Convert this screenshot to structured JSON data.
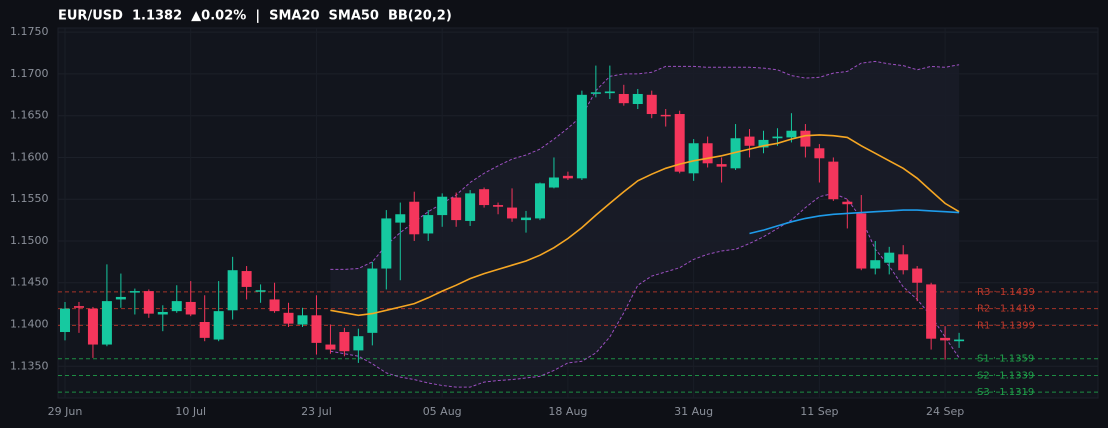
{
  "chart_data": {
    "type": "candlestick",
    "title": "EUR/USD  1.1382  ▲0.02%  |",
    "categories": [
      "29 Jun",
      null,
      null,
      null,
      null,
      null,
      null,
      null,
      null,
      "10 Jul",
      null,
      null,
      null,
      null,
      null,
      null,
      null,
      null,
      "23 Jul",
      null,
      null,
      null,
      null,
      null,
      null,
      null,
      null,
      "05 Aug",
      null,
      null,
      null,
      null,
      null,
      null,
      null,
      null,
      "18 Aug",
      null,
      null,
      null,
      null,
      null,
      null,
      null,
      null,
      "31 Aug",
      null,
      null,
      null,
      null,
      null,
      null,
      null,
      null,
      "11 Sep",
      null,
      null,
      null,
      null,
      null,
      null,
      null,
      null,
      "24 Sep",
      null
    ],
    "open": [
      1.1391,
      1.1422,
      1.1419,
      1.1376,
      1.143,
      1.1439,
      1.144,
      1.1412,
      1.1416,
      1.1427,
      1.1403,
      1.1382,
      1.1417,
      1.1464,
      1.144,
      1.143,
      1.1414,
      1.14,
      1.1411,
      1.1376,
      1.1391,
      1.1369,
      1.139,
      1.1467,
      1.1522,
      1.1547,
      1.1509,
      1.1531,
      1.1552,
      1.1524,
      1.1562,
      1.1543,
      1.154,
      1.1525,
      1.1527,
      1.1564,
      1.1578,
      1.1575,
      1.1677,
      1.1677,
      1.1676,
      1.1664,
      1.1675,
      1.1651,
      1.1652,
      1.1581,
      1.1617,
      1.1592,
      1.1587,
      1.1625,
      1.1612,
      1.1623,
      1.1624,
      1.1632,
      1.1611,
      1.1595,
      1.1547,
      1.1533,
      1.1467,
      1.1474,
      1.1484,
      1.1467,
      1.1448,
      1.1384,
      1.138
    ],
    "high": [
      1.1427,
      1.1427,
      1.1421,
      1.1472,
      1.1461,
      1.1443,
      1.1442,
      1.1423,
      1.1447,
      1.1452,
      1.1435,
      1.1452,
      1.1481,
      1.147,
      1.1448,
      1.145,
      1.1426,
      1.142,
      1.1435,
      1.14,
      1.1396,
      1.1395,
      1.1475,
      1.1537,
      1.1546,
      1.1559,
      1.1537,
      1.1557,
      1.1558,
      1.1561,
      1.1564,
      1.1546,
      1.1563,
      1.1536,
      1.157,
      1.16,
      1.1583,
      1.168,
      1.171,
      1.171,
      1.1687,
      1.1682,
      1.168,
      1.1658,
      1.1656,
      1.1622,
      1.1625,
      1.16,
      1.164,
      1.1634,
      1.1632,
      1.1635,
      1.1653,
      1.164,
      1.1616,
      1.16,
      1.155,
      1.1555,
      1.15,
      1.1493,
      1.1495,
      1.147,
      1.145,
      1.1398,
      1.139
    ],
    "low": [
      1.1381,
      1.139,
      1.136,
      1.1374,
      1.142,
      1.1412,
      1.1408,
      1.1392,
      1.1414,
      1.141,
      1.138,
      1.138,
      1.1406,
      1.143,
      1.1426,
      1.1414,
      1.1397,
      1.1397,
      1.1364,
      1.1365,
      1.1362,
      1.1354,
      1.1375,
      1.1442,
      1.1453,
      1.15,
      1.15,
      1.1517,
      1.1517,
      1.1518,
      1.154,
      1.1532,
      1.1523,
      1.151,
      1.1525,
      1.1563,
      1.1573,
      1.1573,
      1.1672,
      1.167,
      1.1662,
      1.1658,
      1.1647,
      1.1637,
      1.1581,
      1.1572,
      1.1588,
      1.157,
      1.1585,
      1.16,
      1.1605,
      1.1614,
      1.1618,
      1.16,
      1.157,
      1.1548,
      1.1515,
      1.1465,
      1.146,
      1.146,
      1.146,
      1.1428,
      1.137,
      1.1358,
      1.1372
    ],
    "close": [
      1.1419,
      1.142,
      1.1376,
      1.1428,
      1.1433,
      1.144,
      1.1413,
      1.1415,
      1.1428,
      1.1412,
      1.1384,
      1.1416,
      1.1465,
      1.1445,
      1.1441,
      1.1416,
      1.1401,
      1.1411,
      1.1378,
      1.137,
      1.1368,
      1.1386,
      1.1467,
      1.1527,
      1.1532,
      1.1508,
      1.1531,
      1.1553,
      1.1525,
      1.1557,
      1.1543,
      1.1541,
      1.1527,
      1.1528,
      1.1569,
      1.1576,
      1.1575,
      1.1675,
      1.1678,
      1.1679,
      1.1665,
      1.1676,
      1.1652,
      1.165,
      1.1583,
      1.1617,
      1.1593,
      1.1589,
      1.1623,
      1.1614,
      1.1621,
      1.1625,
      1.1632,
      1.1613,
      1.1599,
      1.155,
      1.1544,
      1.1467,
      1.1477,
      1.1486,
      1.1465,
      1.145,
      1.1383,
      1.1381,
      1.1382
    ],
    "up_color": "#16c9a0",
    "down_color": "#f5365c",
    "series": [
      {
        "name": "SMA20",
        "color": "#f5a623",
        "values": [
          null,
          null,
          null,
          null,
          null,
          null,
          null,
          null,
          null,
          null,
          null,
          null,
          null,
          null,
          null,
          null,
          null,
          null,
          null,
          1.1417,
          1.1414,
          1.1411,
          1.1413,
          1.1417,
          1.1421,
          1.1425,
          1.1432,
          1.144,
          1.1447,
          1.1455,
          1.1461,
          1.1466,
          1.1471,
          1.1476,
          1.1483,
          1.1492,
          1.1503,
          1.1516,
          1.1531,
          1.1545,
          1.1559,
          1.1572,
          1.158,
          1.1587,
          1.1592,
          1.1596,
          1.1599,
          1.1602,
          1.1606,
          1.161,
          1.1614,
          1.1617,
          1.1622,
          1.1626,
          1.1627,
          1.1626,
          1.1624,
          1.1614,
          1.1605,
          1.1596,
          1.1587,
          1.1575,
          1.156,
          1.1545,
          1.1535
        ]
      },
      {
        "name": "SMA50",
        "color": "#1e9be9",
        "values": [
          null,
          null,
          null,
          null,
          null,
          null,
          null,
          null,
          null,
          null,
          null,
          null,
          null,
          null,
          null,
          null,
          null,
          null,
          null,
          null,
          null,
          null,
          null,
          null,
          null,
          null,
          null,
          null,
          null,
          null,
          null,
          null,
          null,
          null,
          null,
          null,
          null,
          null,
          null,
          null,
          null,
          null,
          null,
          null,
          null,
          null,
          null,
          null,
          null,
          1.1509,
          1.1513,
          1.1518,
          1.1523,
          1.1527,
          1.153,
          1.1532,
          1.1533,
          1.1534,
          1.1535,
          1.1536,
          1.1537,
          1.1537,
          1.1536,
          1.1535,
          1.1534
        ]
      },
      {
        "name": "BB(20,2)",
        "color": "#9b4fc0",
        "upper": [
          null,
          null,
          null,
          null,
          null,
          null,
          null,
          null,
          null,
          null,
          null,
          null,
          null,
          null,
          null,
          null,
          null,
          null,
          null,
          1.1466,
          1.1466,
          1.1467,
          1.1475,
          1.1495,
          1.151,
          1.1523,
          1.1535,
          1.1545,
          1.1555,
          1.157,
          1.1581,
          1.159,
          1.1598,
          1.1603,
          1.161,
          1.1622,
          1.1635,
          1.165,
          1.168,
          1.1697,
          1.17,
          1.17,
          1.1702,
          1.1709,
          1.1709,
          1.1709,
          1.1708,
          1.1708,
          1.1708,
          1.1708,
          1.1707,
          1.1705,
          1.1698,
          1.1695,
          1.1696,
          1.1701,
          1.1703,
          1.1713,
          1.1715,
          1.1712,
          1.171,
          1.1705,
          1.1709,
          1.1708,
          1.1711
        ],
        "lower": [
          null,
          null,
          null,
          null,
          null,
          null,
          null,
          null,
          null,
          null,
          null,
          null,
          null,
          null,
          null,
          null,
          null,
          null,
          null,
          1.1368,
          1.1365,
          1.1362,
          1.1353,
          1.1342,
          1.1337,
          1.1334,
          1.133,
          1.1327,
          1.1325,
          1.1325,
          1.1331,
          1.1333,
          1.1334,
          1.1336,
          1.1338,
          1.1345,
          1.1354,
          1.1356,
          1.1366,
          1.1385,
          1.1414,
          1.1447,
          1.1458,
          1.1463,
          1.1468,
          1.1478,
          1.1484,
          1.1488,
          1.149,
          1.1497,
          1.1505,
          1.1515,
          1.1525,
          1.154,
          1.1553,
          1.1557,
          1.155,
          1.1527,
          1.149,
          1.147,
          1.1445,
          1.143,
          1.141,
          1.1385,
          1.136
        ]
      }
    ],
    "levels": [
      {
        "value": 1.1439,
        "label": "R3 · 1.1439",
        "color": "#c0392b"
      },
      {
        "value": 1.1419,
        "label": "R2 · 1.1419",
        "color": "#c0392b"
      },
      {
        "value": 1.1399,
        "label": "R1 · 1.1399",
        "color": "#c0392b"
      },
      {
        "value": 1.1359,
        "label": "S1 · 1.1359",
        "color": "#1fa34a"
      },
      {
        "value": 1.1339,
        "label": "S2 · 1.1339",
        "color": "#1fa34a"
      },
      {
        "value": 1.1319,
        "label": "S3 · 1.1319",
        "color": "#1fa34a"
      }
    ],
    "ylim": [
      1.1312,
      1.1755
    ],
    "yticks": [
      {
        "value": 1.135,
        "label": "1.1350"
      },
      {
        "value": 1.14,
        "label": "1.1400"
      },
      {
        "value": 1.145,
        "label": "1.1450"
      },
      {
        "value": 1.15,
        "label": "1.1500"
      },
      {
        "value": 1.155,
        "label": "1.1550"
      },
      {
        "value": 1.16,
        "label": "1.1600"
      },
      {
        "value": 1.165,
        "label": "1.1650"
      },
      {
        "value": 1.17,
        "label": "1.1700"
      },
      {
        "value": 1.175,
        "label": "1.1750"
      }
    ],
    "grid": true
  }
}
